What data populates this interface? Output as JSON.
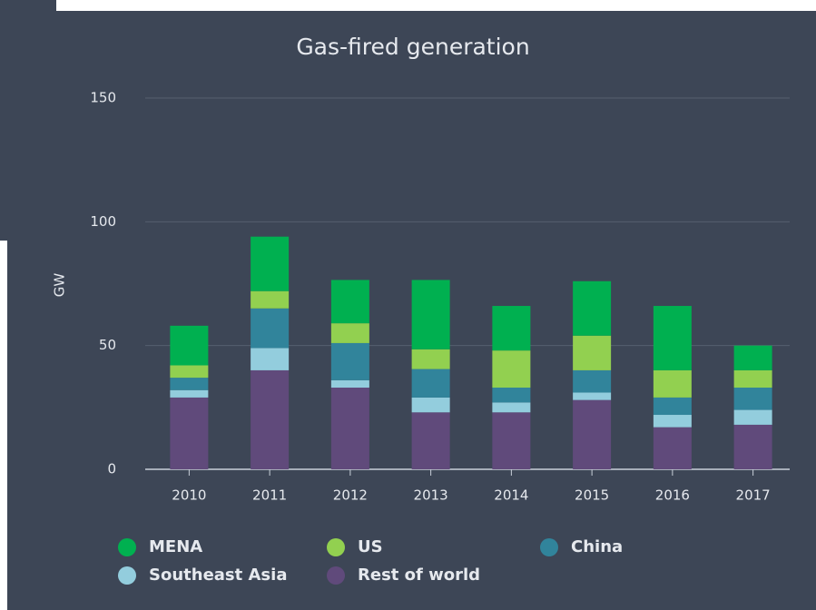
{
  "chart_data": {
    "type": "stacked_bar",
    "title": "Gas-fired generation",
    "y_label": "GW",
    "categories": [
      "2010",
      "2011",
      "2012",
      "2013",
      "2014",
      "2015",
      "2016",
      "2017"
    ],
    "series": [
      {
        "name": "MENA",
        "color": "#00b050",
        "values": [
          16,
          22,
          17.5,
          28,
          18,
          22,
          26,
          10
        ]
      },
      {
        "name": "US",
        "color": "#92d050",
        "values": [
          5,
          7,
          8,
          8,
          15,
          14,
          11,
          7
        ]
      },
      {
        "name": "China",
        "color": "#31849b",
        "values": [
          5,
          16,
          15,
          11.5,
          6,
          9,
          7,
          9
        ]
      },
      {
        "name": "Southeast Asia",
        "color": "#93cddd",
        "values": [
          3,
          9,
          3,
          6,
          4,
          3,
          5,
          6
        ]
      },
      {
        "name": "Rest of world",
        "color": "#604a7b",
        "values": [
          29,
          40,
          33,
          23,
          23,
          28,
          17,
          18
        ]
      }
    ],
    "ylim": [
      0,
      150
    ],
    "yticks": [
      0,
      50,
      100,
      150
    ],
    "grid": true
  }
}
